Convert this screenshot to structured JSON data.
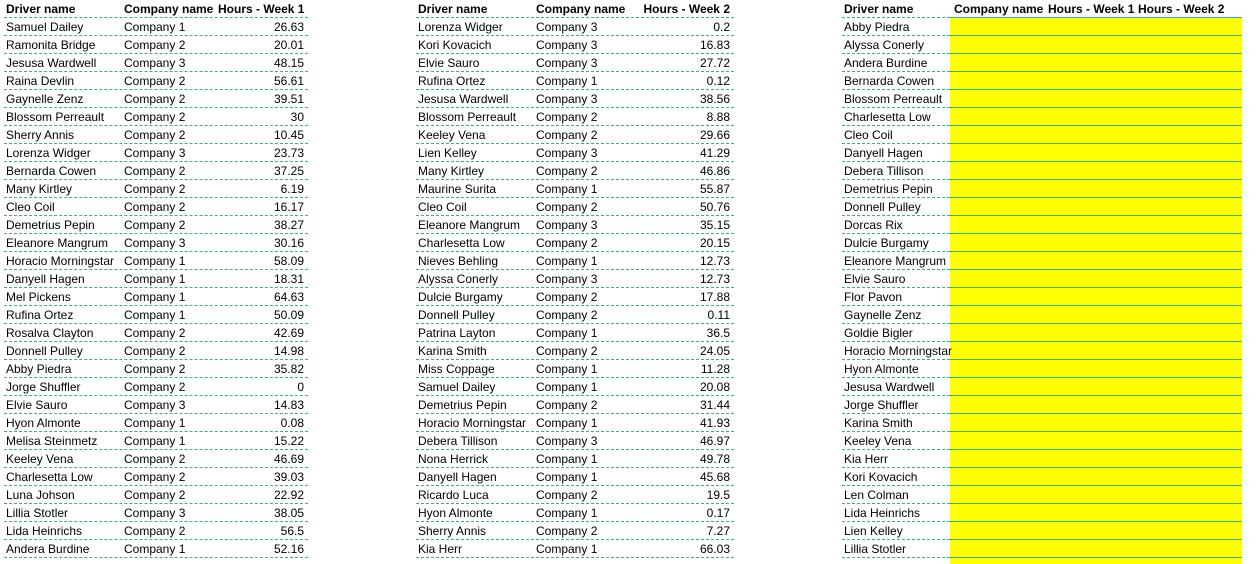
{
  "table1": {
    "headers": [
      "Driver name",
      "Company name",
      "Hours - Week 1"
    ],
    "rows": [
      [
        "Samuel Dailey",
        "Company 1",
        "26.63"
      ],
      [
        "Ramonita Bridge",
        "Company 2",
        "20.01"
      ],
      [
        "Jesusa Wardwell",
        "Company 3",
        "48.15"
      ],
      [
        "Raina Devlin",
        "Company 2",
        "56.61"
      ],
      [
        "Gaynelle Zenz",
        "Company 2",
        "39.51"
      ],
      [
        "Blossom Perreault",
        "Company 2",
        "30"
      ],
      [
        "Sherry Annis",
        "Company 2",
        "10.45"
      ],
      [
        "Lorenza Widger",
        "Company 3",
        "23.73"
      ],
      [
        "Bernarda Cowen",
        "Company 2",
        "37.25"
      ],
      [
        "Many Kirtley",
        "Company 2",
        "6.19"
      ],
      [
        "Cleo Coil",
        "Company 2",
        "16.17"
      ],
      [
        "Demetrius Pepin",
        "Company 2",
        "38.27"
      ],
      [
        "Eleanore Mangrum",
        "Company 3",
        "30.16"
      ],
      [
        "Horacio Morningstar",
        "Company 1",
        "58.09"
      ],
      [
        "Danyell Hagen",
        "Company 1",
        "18.31"
      ],
      [
        "Mel Pickens",
        "Company 1",
        "64.63"
      ],
      [
        "Rufina Ortez",
        "Company 1",
        "50.09"
      ],
      [
        "Rosalva Clayton",
        "Company 2",
        "42.69"
      ],
      [
        "Donnell Pulley",
        "Company 2",
        "14.98"
      ],
      [
        "Abby Piedra",
        "Company 2",
        "35.82"
      ],
      [
        "Jorge Shuffler",
        "Company 2",
        "0"
      ],
      [
        "Elvie Sauro",
        "Company 3",
        "14.83"
      ],
      [
        "Hyon Almonte",
        "Company 1",
        "0.08"
      ],
      [
        "Melisa Steinmetz",
        "Company 1",
        "15.22"
      ],
      [
        "Keeley Vena",
        "Company 2",
        "46.69"
      ],
      [
        "Charlesetta Low",
        "Company 2",
        "39.03"
      ],
      [
        "Luna Johson",
        "Company 2",
        "22.92"
      ],
      [
        "Lillia Stotler",
        "Company 3",
        "38.05"
      ],
      [
        "Lida Heinrichs",
        "Company 2",
        "56.5"
      ],
      [
        "Andera Burdine",
        "Company 1",
        "52.16"
      ]
    ]
  },
  "table2": {
    "headers": [
      "Driver name",
      "Company name",
      "Hours - Week 2"
    ],
    "rows": [
      [
        "Lorenza Widger",
        "Company 3",
        "0.2"
      ],
      [
        "Kori Kovacich",
        "Company 3",
        "16.83"
      ],
      [
        "Elvie Sauro",
        "Company 3",
        "27.72"
      ],
      [
        "Rufina Ortez",
        "Company 1",
        "0.12"
      ],
      [
        "Jesusa Wardwell",
        "Company 3",
        "38.56"
      ],
      [
        "Blossom Perreault",
        "Company 2",
        "8.88"
      ],
      [
        "Keeley Vena",
        "Company 2",
        "29.66"
      ],
      [
        "Lien Kelley",
        "Company 3",
        "41.29"
      ],
      [
        "Many Kirtley",
        "Company 2",
        "46.86"
      ],
      [
        "Maurine Surita",
        "Company 1",
        "55.87"
      ],
      [
        "Cleo Coil",
        "Company 2",
        "50.76"
      ],
      [
        "Eleanore Mangrum",
        "Company 3",
        "35.15"
      ],
      [
        "Charlesetta Low",
        "Company 2",
        "20.15"
      ],
      [
        "Nieves Behling",
        "Company 1",
        "12.73"
      ],
      [
        "Alyssa Conerly",
        "Company 3",
        "12.73"
      ],
      [
        "Dulcie Burgamy",
        "Company 2",
        "17.88"
      ],
      [
        "Donnell Pulley",
        "Company 2",
        "0.11"
      ],
      [
        "Patrina Layton",
        "Company 1",
        "36.5"
      ],
      [
        "Karina Smith",
        "Company 2",
        "24.05"
      ],
      [
        "Miss Coppage",
        "Company 1",
        "11.28"
      ],
      [
        "Samuel Dailey",
        "Company 1",
        "20.08"
      ],
      [
        "Demetrius Pepin",
        "Company 2",
        "31.44"
      ],
      [
        "Horacio Morningstar",
        "Company 1",
        "41.93"
      ],
      [
        "Debera Tillison",
        "Company 3",
        "46.97"
      ],
      [
        "Nona Herrick",
        "Company 1",
        "49.78"
      ],
      [
        "Danyell Hagen",
        "Company 1",
        "45.68"
      ],
      [
        "Ricardo Luca",
        "Company 2",
        "19.5"
      ],
      [
        "Hyon Almonte",
        "Company 1",
        "0.17"
      ],
      [
        "Sherry Annis",
        "Company 2",
        "7.27"
      ],
      [
        "Kia Herr",
        "Company 1",
        "66.03"
      ]
    ]
  },
  "table3": {
    "headers": [
      "Driver name",
      "Company name",
      "Hours - Week 1",
      "Hours - Week 2"
    ],
    "names": [
      "Abby Piedra",
      "Alyssa Conerly",
      "Andera Burdine",
      "Bernarda Cowen",
      "Blossom Perreault",
      "Charlesetta Low",
      "Cleo Coil",
      "Danyell Hagen",
      "Debera Tillison",
      "Demetrius Pepin",
      "Donnell Pulley",
      "Dorcas Rix",
      "Dulcie Burgamy",
      "Eleanore Mangrum",
      "Elvie Sauro",
      "Flor Pavon",
      "Gaynelle Zenz",
      "Goldie Bigler",
      "Horacio Morningstar",
      "Hyon Almonte",
      "Jesusa Wardwell",
      "Jorge Shuffler",
      "Karina Smith",
      "Keeley Vena",
      "Kia Herr",
      "Kori Kovacich",
      "Len Colman",
      "Lida Heinrichs",
      "Lien Kelley",
      "Lillia Stotler"
    ],
    "fill_color": "#ffff00"
  },
  "colors": {
    "gridline": "#3cb371"
  }
}
